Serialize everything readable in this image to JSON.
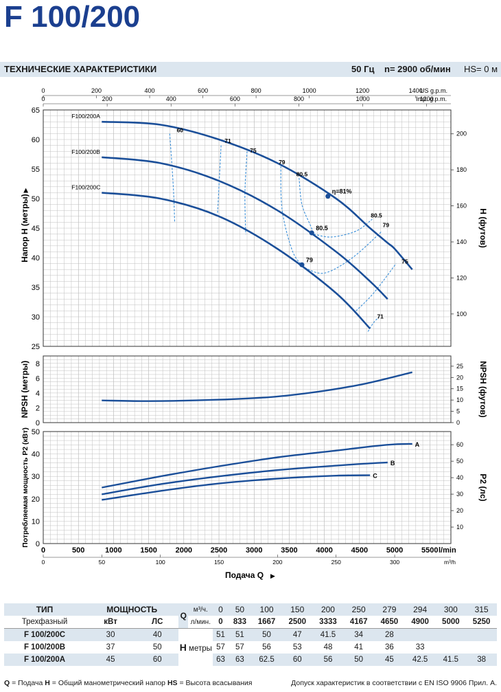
{
  "title": "F 100/200",
  "spec": {
    "heading": "ТЕХНИЧЕСКИЕ ХАРАКТЕРИСТИКИ",
    "freq": "50 Гц",
    "speed": "n= 2900  об/мин",
    "hs": "HS= 0 м"
  },
  "colors": {
    "curve": "#1b4f99",
    "iso": "#3b8fd8",
    "band": "#dce6ef",
    "grid": "#bfbfbf"
  },
  "chart_data": [
    {
      "type": "line",
      "id": "head",
      "ylabel": "Напор H  (метры)",
      "y2label": "H  (футов)",
      "xlim": [
        0,
        5800
      ],
      "ylim": [
        25,
        65
      ],
      "y_ticks": [
        25,
        30,
        35,
        40,
        45,
        50,
        55,
        60,
        65
      ],
      "y2_ticks": [
        100,
        120,
        140,
        160,
        180,
        200
      ],
      "top_axis_us": {
        "unit": "US g.p.m.",
        "ticks": [
          0,
          200,
          400,
          600,
          800,
          1000,
          1200,
          1400
        ]
      },
      "top_axis_imp": {
        "unit": "Imp. g.p.m.",
        "ticks": [
          0,
          200,
          400,
          600,
          800,
          1000,
          1200
        ]
      },
      "series": [
        {
          "name": "F100/200A",
          "x": [
            833,
            1667,
            2500,
            3333,
            4167,
            4650,
            4900,
            5000,
            5250
          ],
          "y": [
            63,
            62.5,
            60,
            56,
            50,
            45,
            42.5,
            41.5,
            38
          ]
        },
        {
          "name": "F100/200B",
          "x": [
            833,
            1667,
            2500,
            3333,
            4167,
            4650,
            4900
          ],
          "y": [
            57,
            56,
            53,
            48,
            41,
            36,
            33
          ]
        },
        {
          "name": "F100/200C",
          "x": [
            833,
            1667,
            2500,
            3333,
            4167,
            4650
          ],
          "y": [
            51,
            50,
            47,
            41.5,
            34,
            28
          ]
        }
      ],
      "efficiency_labels": [
        "60",
        "71",
        "75",
        "79",
        "80.5",
        "η=81%",
        "80.5",
        "79",
        "75",
        "71",
        "80.5",
        "79"
      ],
      "efficiency_lines": [
        {
          "label": "60",
          "x": [
            1800,
            1850,
            1870
          ],
          "y": [
            61,
            52,
            46
          ]
        },
        {
          "label": "71",
          "x": [
            2530,
            2500,
            2480
          ],
          "y": [
            59,
            52,
            47.5
          ]
        },
        {
          "label": "75",
          "x": [
            2900,
            2870,
            2880
          ],
          "y": [
            58,
            51,
            44
          ]
        },
        {
          "label": "79",
          "x": [
            3380,
            3400,
            3550,
            3720
          ],
          "y": [
            55.5,
            48,
            41,
            38.3
          ]
        },
        {
          "label": "80.5",
          "x": [
            3640,
            3680,
            3800,
            3850
          ],
          "y": [
            53.5,
            49,
            45.5,
            44
          ]
        },
        {
          "label": "80.5r",
          "x": [
            3850,
            4100,
            4450,
            4680
          ],
          "y": [
            44,
            43.5,
            44.5,
            46.5
          ]
        },
        {
          "label": "79r",
          "x": [
            3720,
            4000,
            4400,
            4820
          ],
          "y": [
            38.3,
            37.4,
            40,
            44.5
          ]
        },
        {
          "label": "75r",
          "x": [
            4450,
            4700,
            5020
          ],
          "y": [
            31,
            34,
            39
          ]
        },
        {
          "label": "71r",
          "x": [
            4620,
            4700,
            4780
          ],
          "y": [
            27.5,
            29,
            30
          ]
        }
      ],
      "bep_points": [
        {
          "x": 4050,
          "y": 50.4,
          "label": "η=81%"
        },
        {
          "x": 3820,
          "y": 44.2,
          "label": "80.5"
        },
        {
          "x": 3680,
          "y": 38.8,
          "label": "79"
        }
      ]
    },
    {
      "type": "line",
      "id": "npsh",
      "ylabel": "NPSH  (метры)",
      "y2label": "NPSH  (футов)",
      "xlim": [
        0,
        5800
      ],
      "ylim": [
        0,
        9
      ],
      "y_ticks": [
        0,
        2,
        4,
        6,
        8
      ],
      "y2_ticks": [
        0,
        5,
        10,
        15,
        20,
        25
      ],
      "series": [
        {
          "name": "NPSH",
          "x": [
            833,
            1500,
            2500,
            3300,
            4000,
            4600,
            5250
          ],
          "y": [
            3.0,
            2.9,
            3.1,
            3.5,
            4.3,
            5.3,
            6.8
          ]
        }
      ]
    },
    {
      "type": "line",
      "id": "power",
      "ylabel": "Потребляемая мощность  P2  (кВт)",
      "y2label": "P2  (лс)",
      "xlim": [
        0,
        5800
      ],
      "ylim": [
        0,
        50
      ],
      "y_ticks": [
        0,
        10,
        20,
        30,
        40,
        50
      ],
      "y2_ticks": [
        10,
        20,
        30,
        40,
        50,
        60
      ],
      "x_ticks": [
        0,
        500,
        1000,
        1500,
        2000,
        2500,
        3000,
        3500,
        4000,
        4500,
        5000,
        5500
      ],
      "x_unit": "l/min",
      "bottom_axis_m3h": {
        "unit": "m³/h",
        "ticks": [
          0,
          50,
          100,
          150,
          200,
          250,
          300
        ]
      },
      "xlabel": "Подача  Q",
      "series": [
        {
          "name": "A",
          "x": [
            833,
            1667,
            2500,
            3333,
            4167,
            4650,
            5000,
            5250
          ],
          "y": [
            25,
            30,
            34.5,
            38.5,
            41.5,
            43.3,
            44.3,
            44.5
          ]
        },
        {
          "name": "B",
          "x": [
            833,
            1667,
            2500,
            3333,
            4167,
            4650,
            4900
          ],
          "y": [
            22,
            26.5,
            30,
            32.8,
            34.8,
            35.8,
            36.2
          ]
        },
        {
          "name": "C",
          "x": [
            833,
            1667,
            2500,
            3333,
            4167,
            4650
          ],
          "y": [
            19.5,
            23.5,
            26.8,
            29,
            30.3,
            30.5
          ]
        }
      ]
    }
  ],
  "table": {
    "h_type": "ТИП",
    "h_power": "МОЩНОСТЬ",
    "h_q": "Q",
    "unit_m3h": "м³/ч.",
    "unit_lmin": "л/мин.",
    "h_three_phase": "Трехфазный",
    "h_kw": "кВт",
    "h_hp": "ЛС",
    "h_h": "H",
    "h_meters": "метры",
    "q_m3h": [
      "0",
      "50",
      "100",
      "150",
      "200",
      "250",
      "279",
      "294",
      "300",
      "315"
    ],
    "q_lmin": [
      "0",
      "833",
      "1667",
      "2500",
      "3333",
      "4167",
      "4650",
      "4900",
      "5000",
      "5250"
    ],
    "rows": [
      {
        "model": "F 100/200C",
        "kw": "30",
        "hp": "40",
        "h": [
          "51",
          "51",
          "50",
          "47",
          "41.5",
          "34",
          "28",
          "",
          "",
          ""
        ]
      },
      {
        "model": "F 100/200B",
        "kw": "37",
        "hp": "50",
        "h": [
          "57",
          "57",
          "56",
          "53",
          "48",
          "41",
          "36",
          "33",
          "",
          ""
        ]
      },
      {
        "model": "F 100/200A",
        "kw": "45",
        "hp": "60",
        "h": [
          "63",
          "63",
          "62.5",
          "60",
          "56",
          "50",
          "45",
          "42.5",
          "41.5",
          "38"
        ]
      }
    ]
  },
  "footer": {
    "q": "Q",
    "q_txt": " = Подача   ",
    "h": "H",
    "h_txt": " = Общий манометрический напор   ",
    "hs": "HS",
    "hs_txt": " = Высота всасывания",
    "right": "Допуск характеристик в соответствии с EN ISO 9906 Прил. А."
  }
}
